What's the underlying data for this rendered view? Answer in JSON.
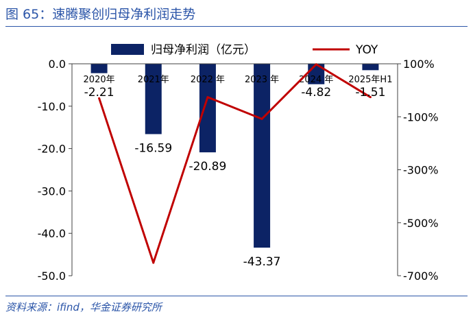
{
  "figure": {
    "title": "图 65：速腾聚创归母净利润走势",
    "source": "资料来源：ifind，华金证券研究所"
  },
  "colors": {
    "bar": "#0c2365",
    "line": "#c00000",
    "title": "#2b55a8",
    "axis": "#404040"
  },
  "chart_data": {
    "type": "bar",
    "categories": [
      "2020年",
      "2021年",
      "2022 年",
      "2023 年",
      "2024 年",
      "2025年H1"
    ],
    "series": [
      {
        "name": "归母净利润（亿元）",
        "type": "bar",
        "axis": "left",
        "values": [
          -2.21,
          -16.59,
          -20.89,
          -43.37,
          -4.82,
          -1.51
        ],
        "labels": [
          "-2.21",
          "-16.59",
          "-20.89",
          "-43.37",
          "-4.82",
          "-1.51"
        ]
      },
      {
        "name": "YOY",
        "type": "line",
        "axis": "right",
        "values": [
          -30,
          -651,
          -26,
          -108,
          98,
          -26
        ]
      }
    ],
    "left_axis": {
      "ylim": [
        -50,
        0
      ],
      "ticks": [
        0,
        -10,
        -20,
        -30,
        -40,
        -50
      ],
      "tick_labels": [
        "0.0",
        "-10.0",
        "-20.0",
        "-30.0",
        "-40.0",
        "-50.0"
      ]
    },
    "right_axis": {
      "ylim": [
        -700,
        100
      ],
      "ticks": [
        100,
        -100,
        -300,
        -500,
        -700
      ],
      "tick_labels": [
        "100%",
        "-100%",
        "-300%",
        "-500%",
        "-700%"
      ]
    },
    "legend_position": "top"
  }
}
